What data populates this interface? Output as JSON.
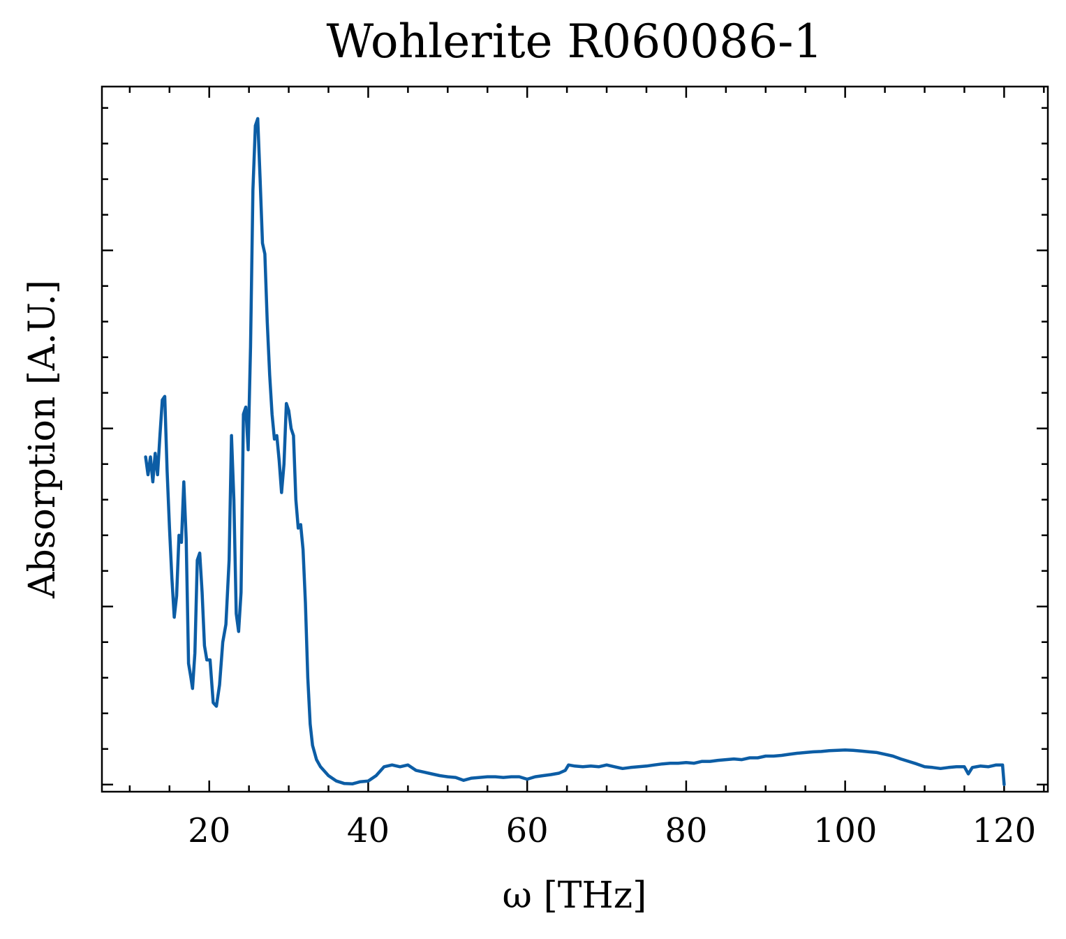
{
  "chart_data": {
    "type": "line",
    "title": "Wohlerite R060086-1",
    "xlabel": "ω [THz]",
    "ylabel": "Absorption [A.U.]",
    "xlim": [
      6.5,
      125.5
    ],
    "ylim": [
      -0.02,
      1.96
    ],
    "x_ticks": [
      20,
      40,
      60,
      80,
      100,
      120
    ],
    "x_tick_labels": [
      "20",
      "40",
      "60",
      "80",
      "100",
      "120"
    ],
    "x_minor_step": 5,
    "y_major_ticks": [
      0,
      0.5,
      1.0,
      1.5
    ],
    "y_minor_step": 0.1,
    "y_tick_labels_shown": false,
    "grid": false,
    "series": [
      {
        "name": "Wohlerite R060086-1",
        "color": "#0C5DA5",
        "points": [
          [
            12.0,
            0.92
          ],
          [
            12.3,
            0.87
          ],
          [
            12.6,
            0.92
          ],
          [
            12.9,
            0.85
          ],
          [
            13.2,
            0.93
          ],
          [
            13.5,
            0.87
          ],
          [
            13.8,
            0.98
          ],
          [
            14.1,
            1.08
          ],
          [
            14.4,
            1.09
          ],
          [
            14.7,
            0.88
          ],
          [
            15.0,
            0.72
          ],
          [
            15.3,
            0.58
          ],
          [
            15.6,
            0.47
          ],
          [
            15.9,
            0.53
          ],
          [
            16.2,
            0.7
          ],
          [
            16.5,
            0.68
          ],
          [
            16.8,
            0.85
          ],
          [
            17.1,
            0.69
          ],
          [
            17.4,
            0.34
          ],
          [
            17.7,
            0.3
          ],
          [
            17.9,
            0.27
          ],
          [
            18.2,
            0.37
          ],
          [
            18.5,
            0.63
          ],
          [
            18.8,
            0.65
          ],
          [
            19.1,
            0.54
          ],
          [
            19.4,
            0.39
          ],
          [
            19.7,
            0.35
          ],
          [
            20.1,
            0.35
          ],
          [
            20.5,
            0.23
          ],
          [
            20.9,
            0.22
          ],
          [
            21.3,
            0.28
          ],
          [
            21.7,
            0.4
          ],
          [
            22.1,
            0.45
          ],
          [
            22.5,
            0.63
          ],
          [
            22.8,
            0.98
          ],
          [
            23.1,
            0.8
          ],
          [
            23.4,
            0.48
          ],
          [
            23.7,
            0.43
          ],
          [
            24.0,
            0.54
          ],
          [
            24.3,
            1.04
          ],
          [
            24.6,
            1.06
          ],
          [
            24.9,
            0.94
          ],
          [
            25.2,
            1.23
          ],
          [
            25.5,
            1.67
          ],
          [
            25.8,
            1.85
          ],
          [
            26.1,
            1.87
          ],
          [
            26.4,
            1.7
          ],
          [
            26.7,
            1.52
          ],
          [
            27.0,
            1.49
          ],
          [
            27.3,
            1.3
          ],
          [
            27.6,
            1.15
          ],
          [
            27.9,
            1.04
          ],
          [
            28.2,
            0.97
          ],
          [
            28.5,
            0.98
          ],
          [
            28.8,
            0.91
          ],
          [
            29.1,
            0.82
          ],
          [
            29.4,
            0.9
          ],
          [
            29.7,
            1.07
          ],
          [
            30.0,
            1.05
          ],
          [
            30.3,
            1.0
          ],
          [
            30.6,
            0.98
          ],
          [
            30.9,
            0.8
          ],
          [
            31.2,
            0.72
          ],
          [
            31.5,
            0.73
          ],
          [
            31.8,
            0.66
          ],
          [
            32.1,
            0.51
          ],
          [
            32.4,
            0.3
          ],
          [
            32.7,
            0.17
          ],
          [
            33.0,
            0.11
          ],
          [
            33.5,
            0.07
          ],
          [
            34.0,
            0.05
          ],
          [
            35.0,
            0.025
          ],
          [
            36.0,
            0.01
          ],
          [
            37.0,
            0.003
          ],
          [
            38.0,
            0.002
          ],
          [
            39.0,
            0.008
          ],
          [
            40.0,
            0.01
          ],
          [
            41.0,
            0.025
          ],
          [
            42.0,
            0.05
          ],
          [
            43.0,
            0.055
          ],
          [
            44.0,
            0.05
          ],
          [
            45.0,
            0.055
          ],
          [
            46.0,
            0.04
          ],
          [
            47.0,
            0.035
          ],
          [
            48.0,
            0.03
          ],
          [
            49.0,
            0.025
          ],
          [
            50.0,
            0.022
          ],
          [
            51.0,
            0.02
          ],
          [
            52.0,
            0.012
          ],
          [
            53.0,
            0.018
          ],
          [
            54.0,
            0.02
          ],
          [
            55.0,
            0.022
          ],
          [
            56.0,
            0.022
          ],
          [
            57.0,
            0.02
          ],
          [
            58.0,
            0.022
          ],
          [
            59.0,
            0.022
          ],
          [
            60.0,
            0.015
          ],
          [
            61.0,
            0.022
          ],
          [
            62.0,
            0.025
          ],
          [
            63.0,
            0.028
          ],
          [
            64.0,
            0.032
          ],
          [
            64.8,
            0.04
          ],
          [
            65.2,
            0.055
          ],
          [
            66.0,
            0.052
          ],
          [
            67.0,
            0.05
          ],
          [
            68.0,
            0.052
          ],
          [
            69.0,
            0.05
          ],
          [
            70.0,
            0.055
          ],
          [
            71.0,
            0.05
          ],
          [
            72.0,
            0.045
          ],
          [
            73.0,
            0.048
          ],
          [
            74.0,
            0.05
          ],
          [
            75.0,
            0.052
          ],
          [
            76.0,
            0.055
          ],
          [
            77.0,
            0.058
          ],
          [
            78.0,
            0.06
          ],
          [
            79.0,
            0.06
          ],
          [
            80.0,
            0.062
          ],
          [
            81.0,
            0.06
          ],
          [
            82.0,
            0.065
          ],
          [
            83.0,
            0.065
          ],
          [
            84.0,
            0.068
          ],
          [
            85.0,
            0.07
          ],
          [
            86.0,
            0.072
          ],
          [
            87.0,
            0.07
          ],
          [
            88.0,
            0.075
          ],
          [
            89.0,
            0.075
          ],
          [
            90.0,
            0.08
          ],
          [
            91.0,
            0.08
          ],
          [
            92.0,
            0.082
          ],
          [
            93.0,
            0.085
          ],
          [
            94.0,
            0.088
          ],
          [
            95.0,
            0.09
          ],
          [
            96.0,
            0.092
          ],
          [
            97.0,
            0.093
          ],
          [
            98.0,
            0.095
          ],
          [
            99.0,
            0.096
          ],
          [
            100.0,
            0.097
          ],
          [
            101.0,
            0.096
          ],
          [
            102.0,
            0.094
          ],
          [
            103.0,
            0.092
          ],
          [
            104.0,
            0.09
          ],
          [
            105.0,
            0.085
          ],
          [
            106.0,
            0.08
          ],
          [
            107.0,
            0.072
          ],
          [
            108.0,
            0.065
          ],
          [
            109.0,
            0.058
          ],
          [
            110.0,
            0.05
          ],
          [
            111.0,
            0.048
          ],
          [
            112.0,
            0.045
          ],
          [
            113.0,
            0.048
          ],
          [
            114.0,
            0.05
          ],
          [
            115.0,
            0.05
          ],
          [
            115.5,
            0.03
          ],
          [
            116.0,
            0.048
          ],
          [
            117.0,
            0.052
          ],
          [
            118.0,
            0.05
          ],
          [
            119.0,
            0.055
          ],
          [
            119.8,
            0.055
          ],
          [
            120.0,
            0.0
          ]
        ]
      }
    ]
  }
}
